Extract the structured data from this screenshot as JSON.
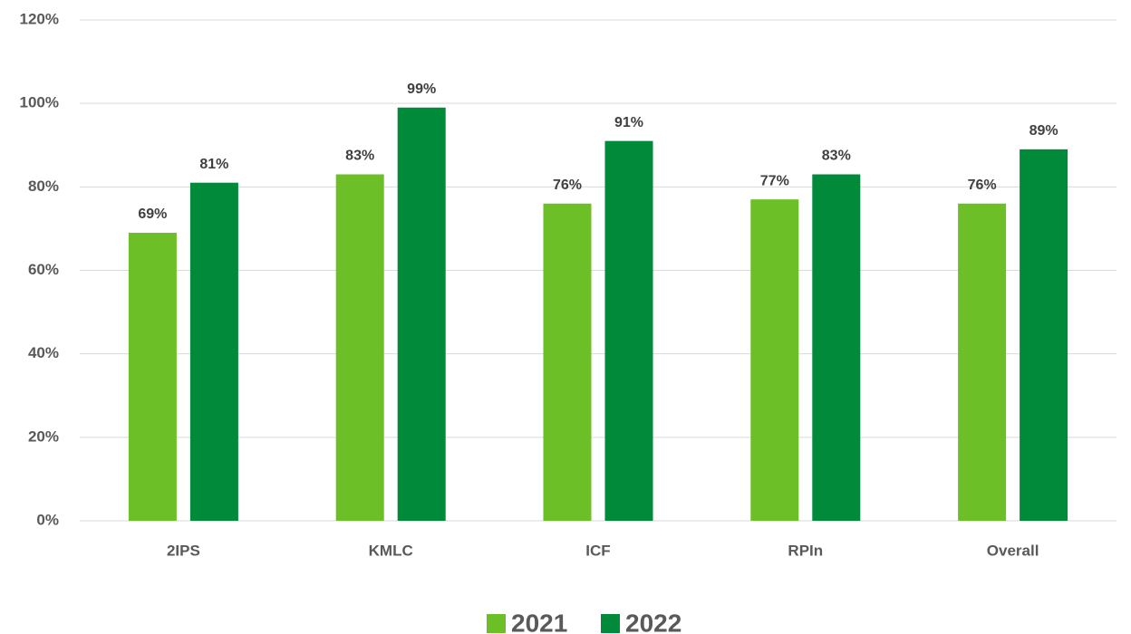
{
  "chart_data": {
    "type": "bar",
    "categories": [
      "2IPS",
      "KMLC",
      "ICF",
      "RPIn",
      "Overall"
    ],
    "series": [
      {
        "name": "2021",
        "color": "#6cbf26",
        "values": [
          69,
          83,
          76,
          77,
          76
        ],
        "value_labels": [
          "69%",
          "83%",
          "76%",
          "77%",
          "76%"
        ]
      },
      {
        "name": "2022",
        "color": "#008a3a",
        "values": [
          81,
          99,
          91,
          83,
          89
        ],
        "value_labels": [
          "81%",
          "99%",
          "91%",
          "83%",
          "89%"
        ]
      }
    ],
    "ylim": [
      0,
      120
    ],
    "yticks": [
      {
        "value": 0,
        "label": "0%"
      },
      {
        "value": 20,
        "label": "20%"
      },
      {
        "value": 40,
        "label": "40%"
      },
      {
        "value": 60,
        "label": "60%"
      },
      {
        "value": 80,
        "label": "80%"
      },
      {
        "value": 100,
        "label": "100%"
      },
      {
        "value": 120,
        "label": "120%"
      }
    ],
    "grid": true,
    "legend": "bottom"
  }
}
